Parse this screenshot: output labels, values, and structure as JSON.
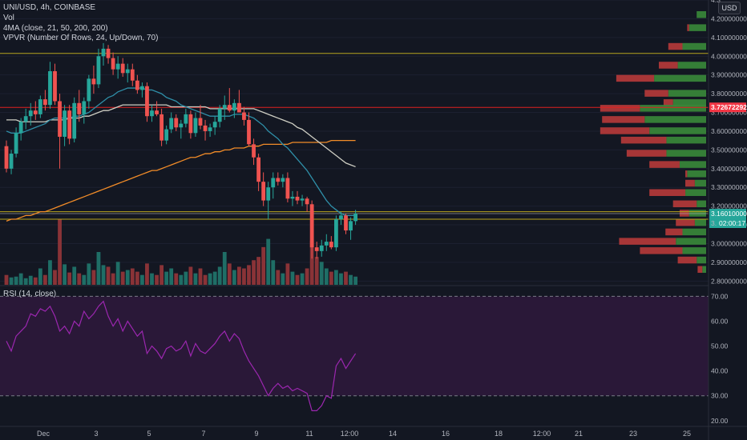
{
  "header": {
    "symbol_line": "UNI/USD, 4h, COINBASE",
    "vol_label": "Vol",
    "ma_label": "4MA (close, 21, 50, 200, 200)",
    "vpvr_label": "VPVR (Number Of Rows, 24, Up/Down, 70)",
    "rsi_label": "RSI (14, close)",
    "currency_button": "USD"
  },
  "colors": {
    "background": "#131722",
    "up": "#26a69a",
    "down": "#ef5350",
    "ma21": "#2f8fa8",
    "ma50": "#cfcfc4",
    "ma200": "#f28c28",
    "rsi_line": "#9c27b0",
    "rsi_band": "#2a1838",
    "resistance_yellow": "#b7a51f",
    "resistance_red": "#e02020",
    "current_price_label": "#26a69a",
    "red_price_label": "#f23645"
  },
  "chart_data": [
    {
      "type": "candlestick",
      "title": "UNI/USD, 4h, COINBASE",
      "x_ticks": [
        "Dec",
        "3",
        "5",
        "7",
        "9",
        "11",
        "12:00",
        "14",
        "16",
        "18",
        "12:00",
        "21",
        "23",
        "25"
      ],
      "y_ticks": [
        "4.3",
        "4.20000000",
        "4.10000000",
        "4.00000000",
        "3.90000000",
        "3.80000000",
        "3.70000000",
        "3.60000000",
        "3.50000000",
        "3.40000000",
        "3.30000000",
        "3.20000000",
        "3.10000000",
        "3.00000000",
        "2.90000000",
        "2.80000000"
      ],
      "ylim": [
        2.78,
        4.3
      ],
      "price_labels": {
        "red_line": "3.72672292",
        "current": "3.16010000",
        "countdown": "02:00:17",
        "partial": "3."
      },
      "horizontal_lines": [
        {
          "price": 4.015,
          "color": "yellow"
        },
        {
          "price": 3.727,
          "color": "red"
        },
        {
          "price": 3.17,
          "color": "yellow"
        },
        {
          "price": 3.13,
          "color": "yellow"
        },
        {
          "price": 3.16,
          "color": "gray"
        }
      ],
      "candles": [
        {
          "o": 3.52,
          "h": 3.55,
          "l": 3.38,
          "c": 3.4
        },
        {
          "o": 3.4,
          "h": 3.5,
          "l": 3.37,
          "c": 3.48
        },
        {
          "o": 3.48,
          "h": 3.62,
          "l": 3.46,
          "c": 3.59
        },
        {
          "o": 3.59,
          "h": 3.67,
          "l": 3.55,
          "c": 3.65
        },
        {
          "o": 3.65,
          "h": 3.72,
          "l": 3.61,
          "c": 3.68
        },
        {
          "o": 3.68,
          "h": 3.75,
          "l": 3.63,
          "c": 3.71
        },
        {
          "o": 3.71,
          "h": 3.76,
          "l": 3.66,
          "c": 3.69
        },
        {
          "o": 3.69,
          "h": 3.79,
          "l": 3.67,
          "c": 3.77
        },
        {
          "o": 3.77,
          "h": 3.82,
          "l": 3.71,
          "c": 3.74
        },
        {
          "o": 3.74,
          "h": 3.97,
          "l": 3.72,
          "c": 3.92
        },
        {
          "o": 3.92,
          "h": 3.96,
          "l": 3.74,
          "c": 3.76
        },
        {
          "o": 3.76,
          "h": 3.8,
          "l": 3.4,
          "c": 3.57
        },
        {
          "o": 3.57,
          "h": 3.74,
          "l": 3.52,
          "c": 3.71
        },
        {
          "o": 3.71,
          "h": 3.74,
          "l": 3.53,
          "c": 3.56
        },
        {
          "o": 3.56,
          "h": 3.78,
          "l": 3.54,
          "c": 3.75
        },
        {
          "o": 3.75,
          "h": 3.82,
          "l": 3.65,
          "c": 3.69
        },
        {
          "o": 3.69,
          "h": 3.78,
          "l": 3.64,
          "c": 3.76
        },
        {
          "o": 3.76,
          "h": 3.9,
          "l": 3.72,
          "c": 3.88
        },
        {
          "o": 3.88,
          "h": 3.95,
          "l": 3.8,
          "c": 3.85
        },
        {
          "o": 3.85,
          "h": 4.04,
          "l": 3.83,
          "c": 4.0
        },
        {
          "o": 4.0,
          "h": 4.07,
          "l": 3.95,
          "c": 4.04
        },
        {
          "o": 4.04,
          "h": 4.06,
          "l": 3.96,
          "c": 3.99
        },
        {
          "o": 3.99,
          "h": 4.02,
          "l": 3.9,
          "c": 3.93
        },
        {
          "o": 3.93,
          "h": 4.0,
          "l": 3.88,
          "c": 3.96
        },
        {
          "o": 3.96,
          "h": 3.99,
          "l": 3.89,
          "c": 3.91
        },
        {
          "o": 3.91,
          "h": 3.96,
          "l": 3.86,
          "c": 3.93
        },
        {
          "o": 3.93,
          "h": 3.96,
          "l": 3.84,
          "c": 3.87
        },
        {
          "o": 3.87,
          "h": 3.9,
          "l": 3.8,
          "c": 3.82
        },
        {
          "o": 3.82,
          "h": 3.86,
          "l": 3.78,
          "c": 3.84
        },
        {
          "o": 3.84,
          "h": 3.86,
          "l": 3.65,
          "c": 3.68
        },
        {
          "o": 3.68,
          "h": 3.74,
          "l": 3.65,
          "c": 3.71
        },
        {
          "o": 3.71,
          "h": 3.76,
          "l": 3.68,
          "c": 3.69
        },
        {
          "o": 3.69,
          "h": 3.72,
          "l": 3.52,
          "c": 3.55
        },
        {
          "o": 3.55,
          "h": 3.63,
          "l": 3.53,
          "c": 3.61
        },
        {
          "o": 3.61,
          "h": 3.7,
          "l": 3.59,
          "c": 3.67
        },
        {
          "o": 3.67,
          "h": 3.69,
          "l": 3.6,
          "c": 3.62
        },
        {
          "o": 3.62,
          "h": 3.66,
          "l": 3.56,
          "c": 3.64
        },
        {
          "o": 3.64,
          "h": 3.72,
          "l": 3.62,
          "c": 3.69
        },
        {
          "o": 3.69,
          "h": 3.71,
          "l": 3.56,
          "c": 3.59
        },
        {
          "o": 3.59,
          "h": 3.7,
          "l": 3.57,
          "c": 3.67
        },
        {
          "o": 3.67,
          "h": 3.74,
          "l": 3.61,
          "c": 3.63
        },
        {
          "o": 3.63,
          "h": 3.66,
          "l": 3.55,
          "c": 3.6
        },
        {
          "o": 3.6,
          "h": 3.64,
          "l": 3.57,
          "c": 3.62
        },
        {
          "o": 3.62,
          "h": 3.68,
          "l": 3.58,
          "c": 3.65
        },
        {
          "o": 3.65,
          "h": 3.74,
          "l": 3.62,
          "c": 3.72
        },
        {
          "o": 3.72,
          "h": 3.79,
          "l": 3.66,
          "c": 3.74
        },
        {
          "o": 3.74,
          "h": 3.83,
          "l": 3.7,
          "c": 3.71
        },
        {
          "o": 3.71,
          "h": 3.77,
          "l": 3.67,
          "c": 3.75
        },
        {
          "o": 3.75,
          "h": 3.82,
          "l": 3.7,
          "c": 3.7
        },
        {
          "o": 3.7,
          "h": 3.73,
          "l": 3.63,
          "c": 3.66
        },
        {
          "o": 3.66,
          "h": 3.7,
          "l": 3.52,
          "c": 3.53
        },
        {
          "o": 3.53,
          "h": 3.56,
          "l": 3.42,
          "c": 3.46
        },
        {
          "o": 3.46,
          "h": 3.48,
          "l": 3.28,
          "c": 3.33
        },
        {
          "o": 3.33,
          "h": 3.38,
          "l": 3.2,
          "c": 3.23
        },
        {
          "o": 3.23,
          "h": 3.33,
          "l": 3.13,
          "c": 3.3
        },
        {
          "o": 3.3,
          "h": 3.38,
          "l": 3.24,
          "c": 3.35
        },
        {
          "o": 3.35,
          "h": 3.38,
          "l": 3.31,
          "c": 3.33
        },
        {
          "o": 3.33,
          "h": 3.37,
          "l": 3.3,
          "c": 3.35
        },
        {
          "o": 3.35,
          "h": 3.38,
          "l": 3.22,
          "c": 3.24
        },
        {
          "o": 3.24,
          "h": 3.28,
          "l": 3.2,
          "c": 3.25
        },
        {
          "o": 3.25,
          "h": 3.28,
          "l": 3.21,
          "c": 3.23
        },
        {
          "o": 3.23,
          "h": 3.26,
          "l": 3.2,
          "c": 3.24
        },
        {
          "o": 3.24,
          "h": 3.25,
          "l": 3.17,
          "c": 3.21
        },
        {
          "o": 3.21,
          "h": 3.23,
          "l": 2.92,
          "c": 2.98
        },
        {
          "o": 2.98,
          "h": 3.01,
          "l": 2.92,
          "c": 2.96
        },
        {
          "o": 2.96,
          "h": 3.02,
          "l": 2.93,
          "c": 2.99
        },
        {
          "o": 2.99,
          "h": 3.05,
          "l": 2.96,
          "c": 3.01
        },
        {
          "o": 3.01,
          "h": 3.04,
          "l": 2.97,
          "c": 2.98
        },
        {
          "o": 2.98,
          "h": 3.15,
          "l": 2.96,
          "c": 3.13
        },
        {
          "o": 3.13,
          "h": 3.17,
          "l": 3.1,
          "c": 3.15
        },
        {
          "o": 3.15,
          "h": 3.16,
          "l": 3.05,
          "c": 3.07
        },
        {
          "o": 3.07,
          "h": 3.14,
          "l": 3.02,
          "c": 3.12
        },
        {
          "o": 3.12,
          "h": 3.18,
          "l": 3.1,
          "c": 3.16
        }
      ],
      "volume": [
        12,
        9,
        10,
        14,
        8,
        11,
        9,
        20,
        12,
        30,
        18,
        80,
        25,
        15,
        22,
        14,
        12,
        26,
        18,
        40,
        24,
        22,
        14,
        28,
        16,
        18,
        20,
        16,
        12,
        26,
        14,
        12,
        24,
        16,
        20,
        14,
        12,
        16,
        22,
        14,
        20,
        12,
        14,
        16,
        22,
        40,
        26,
        18,
        22,
        20,
        24,
        30,
        34,
        46,
        56,
        30,
        18,
        14,
        26,
        16,
        12,
        14,
        20,
        54,
        34,
        28,
        20,
        16,
        18,
        14,
        16,
        12,
        10
      ],
      "ma21": [
        3.6,
        3.59,
        3.59,
        3.59,
        3.6,
        3.61,
        3.62,
        3.63,
        3.64,
        3.66,
        3.67,
        3.67,
        3.67,
        3.67,
        3.68,
        3.68,
        3.69,
        3.7,
        3.72,
        3.74,
        3.76,
        3.78,
        3.79,
        3.81,
        3.82,
        3.83,
        3.83,
        3.83,
        3.83,
        3.82,
        3.82,
        3.81,
        3.8,
        3.78,
        3.77,
        3.76,
        3.74,
        3.73,
        3.72,
        3.71,
        3.7,
        3.69,
        3.68,
        3.68,
        3.68,
        3.68,
        3.68,
        3.69,
        3.69,
        3.69,
        3.68,
        3.67,
        3.65,
        3.63,
        3.6,
        3.58,
        3.56,
        3.53,
        3.51,
        3.48,
        3.45,
        3.42,
        3.39,
        3.35,
        3.31,
        3.27,
        3.23,
        3.2,
        3.18,
        3.16,
        3.15,
        3.15,
        3.15
      ],
      "ma50": [
        3.66,
        3.66,
        3.66,
        3.65,
        3.65,
        3.65,
        3.65,
        3.65,
        3.65,
        3.66,
        3.66,
        3.66,
        3.66,
        3.67,
        3.67,
        3.67,
        3.68,
        3.68,
        3.69,
        3.7,
        3.71,
        3.71,
        3.72,
        3.73,
        3.74,
        3.74,
        3.74,
        3.74,
        3.74,
        3.74,
        3.74,
        3.74,
        3.74,
        3.74,
        3.73,
        3.73,
        3.73,
        3.73,
        3.73,
        3.73,
        3.73,
        3.73,
        3.72,
        3.72,
        3.72,
        3.72,
        3.72,
        3.72,
        3.72,
        3.72,
        3.72,
        3.72,
        3.71,
        3.7,
        3.69,
        3.68,
        3.67,
        3.66,
        3.65,
        3.64,
        3.62,
        3.61,
        3.59,
        3.57,
        3.55,
        3.53,
        3.51,
        3.49,
        3.47,
        3.45,
        3.43,
        3.42,
        3.41
      ],
      "ma200": [
        3.12,
        3.13,
        3.13,
        3.14,
        3.15,
        3.15,
        3.16,
        3.17,
        3.17,
        3.18,
        3.19,
        3.2,
        3.21,
        3.22,
        3.23,
        3.24,
        3.25,
        3.26,
        3.27,
        3.28,
        3.29,
        3.3,
        3.31,
        3.32,
        3.33,
        3.34,
        3.35,
        3.36,
        3.37,
        3.38,
        3.39,
        3.39,
        3.4,
        3.41,
        3.42,
        3.43,
        3.44,
        3.45,
        3.46,
        3.46,
        3.47,
        3.48,
        3.48,
        3.49,
        3.49,
        3.5,
        3.5,
        3.51,
        3.51,
        3.51,
        3.52,
        3.52,
        3.52,
        3.53,
        3.53,
        3.53,
        3.53,
        3.53,
        3.53,
        3.54,
        3.54,
        3.54,
        3.54,
        3.54,
        3.54,
        3.54,
        3.54,
        3.55,
        3.55,
        3.55,
        3.55,
        3.55,
        3.55
      ],
      "vpvr": [
        {
          "price": 4.22,
          "up": 0.1,
          "down": 0.0
        },
        {
          "price": 4.15,
          "up": 0.18,
          "down": 0.02
        },
        {
          "price": 4.05,
          "up": 0.25,
          "down": 0.15
        },
        {
          "price": 3.95,
          "up": 0.3,
          "down": 0.2
        },
        {
          "price": 3.88,
          "up": 0.55,
          "down": 0.4
        },
        {
          "price": 3.8,
          "up": 0.4,
          "down": 0.25
        },
        {
          "price": 3.75,
          "up": 0.35,
          "down": 0.1
        },
        {
          "price": 3.72,
          "up": 0.7,
          "down": 0.42
        },
        {
          "price": 3.66,
          "up": 0.65,
          "down": 0.45
        },
        {
          "price": 3.6,
          "up": 0.6,
          "down": 0.52
        },
        {
          "price": 3.55,
          "up": 0.42,
          "down": 0.48
        },
        {
          "price": 3.48,
          "up": 0.42,
          "down": 0.42
        },
        {
          "price": 3.42,
          "up": 0.28,
          "down": 0.32
        },
        {
          "price": 3.37,
          "up": 0.2,
          "down": 0.02
        },
        {
          "price": 3.32,
          "up": 0.12,
          "down": 0.1
        },
        {
          "price": 3.27,
          "up": 0.22,
          "down": 0.38
        },
        {
          "price": 3.21,
          "up": 0.1,
          "down": 0.25
        },
        {
          "price": 3.16,
          "up": 0.18,
          "down": 0.1
        },
        {
          "price": 3.11,
          "up": 0.12,
          "down": 0.2
        },
        {
          "price": 3.06,
          "up": 0.25,
          "down": 0.18
        },
        {
          "price": 3.01,
          "up": 0.32,
          "down": 0.6
        },
        {
          "price": 2.96,
          "up": 0.25,
          "down": 0.45
        },
        {
          "price": 2.91,
          "up": 0.1,
          "down": 0.2
        },
        {
          "price": 2.86,
          "up": 0.04,
          "down": 0.05
        }
      ]
    },
    {
      "type": "line",
      "title": "RSI (14, close)",
      "y_ticks": [
        "70.00",
        "60.00",
        "50.00",
        "40.00",
        "30.00",
        "20.00"
      ],
      "ylim": [
        18,
        74
      ],
      "overbought": 70,
      "oversold": 30,
      "values": [
        52,
        48,
        54,
        56,
        58,
        63,
        62,
        65,
        64,
        66,
        62,
        56,
        58,
        55,
        60,
        58,
        64,
        61,
        63,
        66,
        68,
        62,
        58,
        61,
        56,
        60,
        57,
        54,
        56,
        47,
        50,
        48,
        45,
        49,
        50,
        48,
        49,
        52,
        46,
        51,
        48,
        47,
        49,
        51,
        54,
        56,
        52,
        55,
        53,
        48,
        44,
        41,
        38,
        34,
        30,
        33,
        35,
        33,
        34,
        32,
        33,
        32,
        31,
        24,
        24,
        26,
        30,
        29,
        42,
        45,
        41,
        44,
        47
      ]
    }
  ]
}
